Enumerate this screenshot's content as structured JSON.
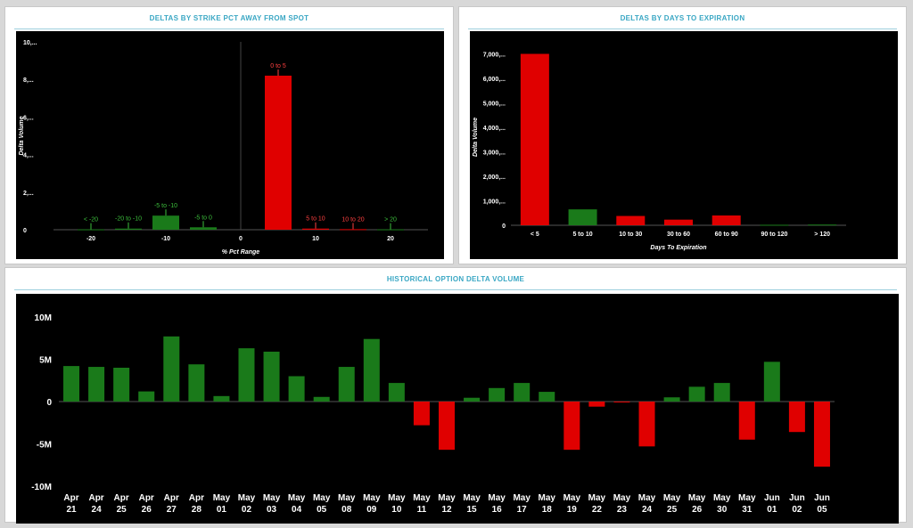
{
  "panels": {
    "strike": {
      "title": "DELTAS BY STRIKE PCT AWAY FROM SPOT"
    },
    "days": {
      "title": "DELTAS BY DAYS TO EXPIRATION"
    },
    "historical": {
      "title": "HISTORICAL OPTION DELTA VOLUME"
    }
  },
  "chart_data": [
    {
      "id": "strike",
      "type": "bar",
      "title": "DELTAS BY STRIKE PCT AWAY FROM SPOT",
      "xlabel": "% Pct Range",
      "ylabel": "Delta Volume",
      "x_ticks": [
        "-20",
        "-10",
        "0",
        "10",
        "20"
      ],
      "y_ticks": [
        "0",
        "2,...",
        "4,...",
        "6,...",
        "8,...",
        "10,..."
      ],
      "ylim": [
        0,
        10000
      ],
      "xlim": [
        -25,
        25
      ],
      "positive_color": "#1a7a1a",
      "negative_color": "#e00000",
      "bars": [
        {
          "label": "< -20",
          "x": -20,
          "value": 20,
          "color": "green"
        },
        {
          "label": "-20 to -10",
          "x": -15,
          "value": 60,
          "color": "green"
        },
        {
          "label": "-5 to -10",
          "x": -10,
          "value": 750,
          "color": "green"
        },
        {
          "label": "-5 to 0",
          "x": -5,
          "value": 130,
          "color": "green"
        },
        {
          "label": "0 to 5",
          "x": 5,
          "value": 8200,
          "color": "red"
        },
        {
          "label": "5 to 10",
          "x": 10,
          "value": 60,
          "color": "red"
        },
        {
          "label": "10 to 20",
          "x": 15,
          "value": 30,
          "color": "red"
        },
        {
          "label": "> 20",
          "x": 20,
          "value": 20,
          "color": "green"
        }
      ]
    },
    {
      "id": "days",
      "type": "bar",
      "title": "DELTAS BY DAYS TO EXPIRATION",
      "xlabel": "Days To Expiration",
      "ylabel": "Delta Volume",
      "y_ticks": [
        "0",
        "1,000,...",
        "2,000,...",
        "3,000,...",
        "4,000,...",
        "5,000,...",
        "6,000,...",
        "7,000,..."
      ],
      "ylim": [
        0,
        7200
      ],
      "categories": [
        "< 5",
        "5 to 10",
        "10 to 30",
        "30 to 60",
        "60 to 90",
        "90 to 120",
        "> 120"
      ],
      "values": [
        7000,
        650,
        380,
        230,
        400,
        20,
        30
      ],
      "colors": [
        "red",
        "green",
        "red",
        "red",
        "red",
        "green",
        "green"
      ]
    },
    {
      "id": "historical",
      "type": "bar",
      "title": "HISTORICAL OPTION DELTA VOLUME",
      "ylabel": "",
      "y_ticks": [
        "10M",
        "5M",
        "0",
        "-5M",
        "-10M"
      ],
      "ylim": [
        -10000000,
        10000000
      ],
      "categories": [
        [
          "Apr",
          "21"
        ],
        [
          "Apr",
          "24"
        ],
        [
          "Apr",
          "25"
        ],
        [
          "Apr",
          "26"
        ],
        [
          "Apr",
          "27"
        ],
        [
          "Apr",
          "28"
        ],
        [
          "May",
          "01"
        ],
        [
          "May",
          "02"
        ],
        [
          "May",
          "03"
        ],
        [
          "May",
          "04"
        ],
        [
          "May",
          "05"
        ],
        [
          "May",
          "08"
        ],
        [
          "May",
          "09"
        ],
        [
          "May",
          "10"
        ],
        [
          "May",
          "11"
        ],
        [
          "May",
          "12"
        ],
        [
          "May",
          "15"
        ],
        [
          "May",
          "16"
        ],
        [
          "May",
          "17"
        ],
        [
          "May",
          "18"
        ],
        [
          "May",
          "19"
        ],
        [
          "May",
          "22"
        ],
        [
          "May",
          "23"
        ],
        [
          "May",
          "24"
        ],
        [
          "May",
          "25"
        ],
        [
          "May",
          "26"
        ],
        [
          "May",
          "30"
        ],
        [
          "May",
          "31"
        ],
        [
          "Jun",
          "01"
        ],
        [
          "Jun",
          "02"
        ],
        [
          "Jun",
          "05"
        ]
      ],
      "values": [
        4200000,
        4100000,
        4000000,
        1200000,
        7700000,
        4400000,
        650000,
        6300000,
        5900000,
        3000000,
        550000,
        4100000,
        7400000,
        2200000,
        -2800000,
        -5700000,
        450000,
        1600000,
        2200000,
        1150000,
        -5700000,
        -600000,
        -80000,
        -5300000,
        500000,
        1750000,
        2200000,
        -4500000,
        4700000,
        -3600000,
        -7700000
      ],
      "positive_color": "#1a7a1a",
      "negative_color": "#e00000"
    }
  ]
}
